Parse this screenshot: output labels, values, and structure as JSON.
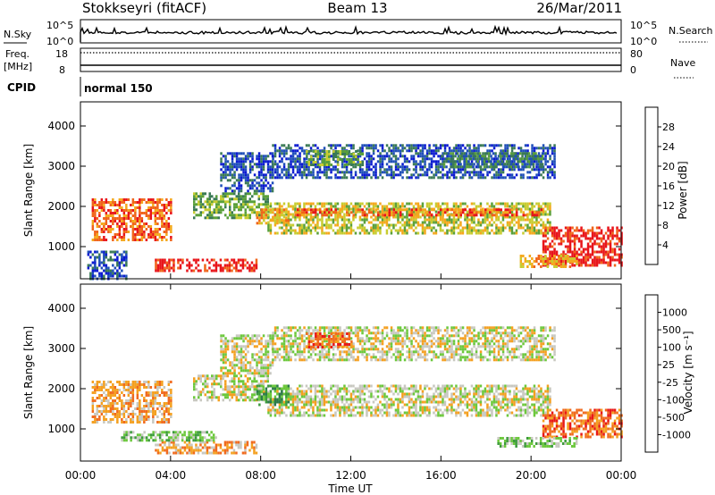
{
  "header": {
    "station": "Stokkseyri (fitACF)",
    "beam": "Beam 13",
    "date": "26/Mar/2011"
  },
  "status_panels": {
    "nsky_label": "N.Sky",
    "nsky_ticks": [
      "10^5",
      "10^0"
    ],
    "nsearch_label": "N.Search",
    "nsearch_ticks": [
      "10^5",
      "10^0"
    ],
    "freq_label": "Freq.",
    "freq_unit": "[MHz]",
    "freq_ticks": [
      "18",
      "8"
    ],
    "nave_label": "Nave",
    "nave_ticks": [
      "80",
      "0"
    ],
    "cpid_label": "CPID",
    "cpid_value": "normal 150"
  },
  "chart_data": [
    {
      "type": "heatmap",
      "name": "power",
      "ylabel": "Slant Range [km]",
      "ylim": [
        200,
        4600
      ],
      "yticks": [
        "4000",
        "3000",
        "2000",
        "1000"
      ],
      "ytick_values": [
        4000,
        3000,
        2000,
        1000
      ],
      "xlim_hours": [
        0,
        24
      ],
      "colorbar_label": "Power [dB]",
      "colorbar_ticks": [
        "28",
        "24",
        "20",
        "16",
        "12",
        "8",
        "4"
      ],
      "colors": [
        "#0a1ad0",
        "#1f4fb8",
        "#3a7a55",
        "#5aa03a",
        "#c8cc30",
        "#f4a81c",
        "#f0641a",
        "#e8141a"
      ],
      "regions": [
        {
          "t": [
            0.5,
            4.0
          ],
          "r": [
            1150,
            2200
          ],
          "level": 6
        },
        {
          "t": [
            3.3,
            7.8
          ],
          "r": [
            430,
            700
          ],
          "level": 7
        },
        {
          "t": [
            5.0,
            8.3
          ],
          "r": [
            1700,
            2350
          ],
          "level": 3
        },
        {
          "t": [
            8.3,
            20.8
          ],
          "r": [
            1350,
            2100
          ],
          "level": 4
        },
        {
          "t": [
            9.5,
            20.5
          ],
          "r": [
            1750,
            1950
          ],
          "level": 6
        },
        {
          "t": [
            7.8,
            9.2
          ],
          "r": [
            1600,
            1950
          ],
          "level": 5
        },
        {
          "t": [
            6.2,
            8.5
          ],
          "r": [
            2350,
            3350
          ],
          "level": 1
        },
        {
          "t": [
            8.5,
            21.0
          ],
          "r": [
            2700,
            3550
          ],
          "level": 1
        },
        {
          "t": [
            10.0,
            12.5
          ],
          "r": [
            3000,
            3400
          ],
          "level": 3
        },
        {
          "t": [
            16.0,
            20.5
          ],
          "r": [
            2950,
            3350
          ],
          "level": 2
        },
        {
          "t": [
            20.5,
            24.0
          ],
          "r": [
            500,
            1500
          ],
          "level": 7
        },
        {
          "t": [
            19.5,
            22.0
          ],
          "r": [
            500,
            800
          ],
          "level": 5
        },
        {
          "t": [
            0.3,
            2.0
          ],
          "r": [
            200,
            900
          ],
          "level": 1
        }
      ]
    },
    {
      "type": "heatmap",
      "name": "velocity",
      "ylabel": "Slant Range [km]",
      "xlabel": "Time UT",
      "ylim": [
        200,
        4600
      ],
      "yticks": [
        "4000",
        "3000",
        "2000",
        "1000"
      ],
      "ytick_values": [
        4000,
        3000,
        2000,
        1000
      ],
      "xlim_hours": [
        0,
        24
      ],
      "xticks": [
        "00:00",
        "04:00",
        "08:00",
        "12:00",
        "16:00",
        "20:00",
        "00:00"
      ],
      "colorbar_label": "Velocity [m s⁻¹]",
      "colorbar_ticks": [
        "1000",
        "500",
        "100",
        "25",
        "-25",
        "-100",
        "-500",
        "-1000"
      ],
      "colors": [
        "#1a3ec8",
        "#2c7a4a",
        "#3c9a3c",
        "#6cc83c",
        "#c8c8c0",
        "#f4a020",
        "#f06a1e",
        "#e81818"
      ],
      "regions": [
        {
          "t": [
            0.5,
            4.0
          ],
          "r": [
            1150,
            2200
          ],
          "level": 5
        },
        {
          "t": [
            3.3,
            7.8
          ],
          "r": [
            430,
            700
          ],
          "level": 5
        },
        {
          "t": [
            1.8,
            6.0
          ],
          "r": [
            700,
            950
          ],
          "level": 3
        },
        {
          "t": [
            5.0,
            8.3
          ],
          "r": [
            1700,
            2350
          ],
          "level": 4
        },
        {
          "t": [
            8.3,
            20.8
          ],
          "r": [
            1350,
            2100
          ],
          "level": 4
        },
        {
          "t": [
            7.8,
            9.2
          ],
          "r": [
            1600,
            2100
          ],
          "level": 2
        },
        {
          "t": [
            6.2,
            8.5
          ],
          "r": [
            2350,
            3350
          ],
          "level": 4
        },
        {
          "t": [
            8.5,
            21.0
          ],
          "r": [
            2700,
            3550
          ],
          "level": 4
        },
        {
          "t": [
            10.0,
            12.0
          ],
          "r": [
            3000,
            3400
          ],
          "level": 6
        },
        {
          "t": [
            20.5,
            24.0
          ],
          "r": [
            800,
            1500
          ],
          "level": 6
        },
        {
          "t": [
            18.5,
            22.0
          ],
          "r": [
            550,
            800
          ],
          "level": 3
        }
      ]
    }
  ]
}
